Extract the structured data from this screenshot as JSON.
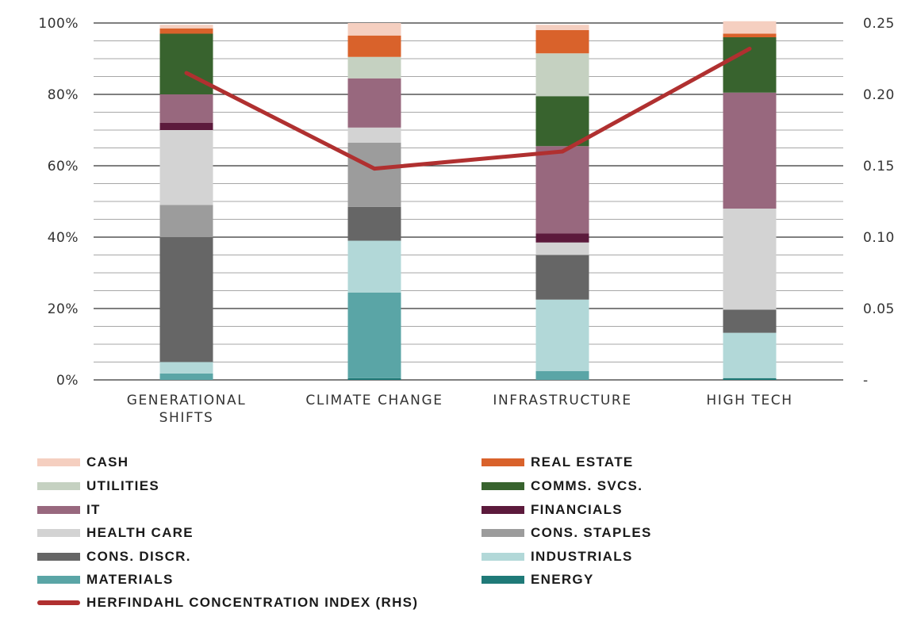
{
  "chart_data": {
    "type": "bar",
    "stacked": true,
    "categories": [
      "GENERATIONAL SHIFTS",
      "CLIMATE CHANGE",
      "INFRASTRUCTURE",
      "HIGH TECH"
    ],
    "category_lines": [
      [
        "GENERATIONAL",
        "SHIFTS"
      ],
      [
        "CLIMATE CHANGE"
      ],
      [
        "INFRASTRUCTURE"
      ],
      [
        "HIGH TECH"
      ]
    ],
    "y_left": {
      "ylim": [
        0,
        100
      ],
      "ticks": [
        "0%",
        "20%",
        "40%",
        "60%",
        "80%",
        "100%"
      ]
    },
    "y_right": {
      "ylim": [
        0,
        0.25
      ],
      "ticks": [
        "-",
        "0.05",
        "0.10",
        "0.15",
        "0.20",
        "0.25"
      ]
    },
    "grid": true,
    "series": [
      {
        "name": "ENERGY",
        "color": "#1f7a78",
        "values": [
          0.0,
          0.5,
          0.0,
          0.5
        ]
      },
      {
        "name": "MATERIALS",
        "color": "#5aa5a6",
        "values": [
          1.8,
          24.0,
          2.5,
          0.0
        ]
      },
      {
        "name": "INDUSTRIALS",
        "color": "#b2d8d8",
        "values": [
          3.2,
          14.5,
          20.0,
          12.7
        ]
      },
      {
        "name": "CONS. DISCR.",
        "color": "#666666",
        "values": [
          35.0,
          9.5,
          12.5,
          6.5
        ]
      },
      {
        "name": "CONS. STAPLES",
        "color": "#9c9c9c",
        "values": [
          9.0,
          18.0,
          0.0,
          0.0
        ]
      },
      {
        "name": "HEALTH CARE",
        "color": "#d3d3d3",
        "values": [
          21.0,
          4.2,
          3.5,
          28.3
        ]
      },
      {
        "name": "FINANCIALS",
        "color": "#5c1a3c",
        "values": [
          2.0,
          0.0,
          2.5,
          0.0
        ]
      },
      {
        "name": "IT",
        "color": "#98687e",
        "values": [
          8.0,
          13.8,
          24.5,
          32.5
        ]
      },
      {
        "name": "COMMS. SVCS.",
        "color": "#38632e",
        "values": [
          17.0,
          0.0,
          14.0,
          15.5
        ]
      },
      {
        "name": "UTILITIES",
        "color": "#c5d1c1",
        "values": [
          0.0,
          6.0,
          12.0,
          0.0
        ]
      },
      {
        "name": "REAL ESTATE",
        "color": "#d9622b",
        "values": [
          1.5,
          6.0,
          6.5,
          1.0
        ]
      },
      {
        "name": "CASH",
        "color": "#f5cfc0",
        "values": [
          1.0,
          3.5,
          1.5,
          3.5
        ]
      }
    ],
    "line": {
      "name": "HERFINDAHL CONCENTRATION INDEX (RHS)",
      "color": "#b03030",
      "axis": "right",
      "values": [
        0.215,
        0.148,
        0.16,
        0.232
      ]
    }
  },
  "legend": {
    "cash": "CASH",
    "real_estate": "REAL ESTATE",
    "utilities": "UTILITIES",
    "comms": "COMMS. SVCS.",
    "it": "IT",
    "financials": "FINANCIALS",
    "health_care": "HEALTH CARE",
    "cons_staples": "CONS. STAPLES",
    "cons_discr": "CONS. DISCR.",
    "industrials": "INDUSTRIALS",
    "materials": "MATERIALS",
    "energy": "ENERGY",
    "herfindahl": "HERFINDAHL CONCENTRATION INDEX (RHS)"
  },
  "colors": {
    "axis_text": "#333333",
    "gridline": "#555555",
    "line": "#b03030"
  }
}
